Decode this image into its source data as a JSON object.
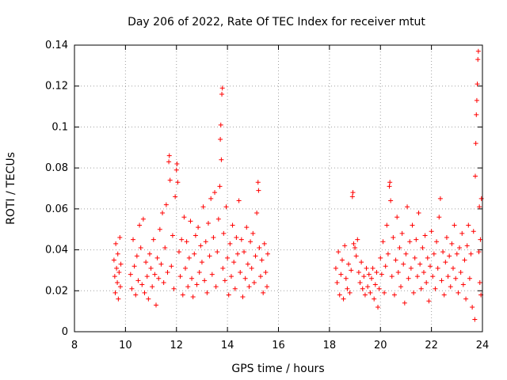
{
  "chart_data": {
    "type": "scatter",
    "title": "Day 206 of 2022, Rate Of TEC Index for receiver mtut",
    "xlabel": "GPS time / hours",
    "ylabel": "ROTI / TECUs",
    "xlim": [
      8,
      24
    ],
    "ylim": [
      0,
      0.14
    ],
    "x_ticks": [
      8,
      10,
      12,
      14,
      16,
      18,
      20,
      22,
      24
    ],
    "x_tick_labels": [
      "8",
      "10",
      "12",
      "14",
      "16",
      "18",
      "20",
      "22",
      "24"
    ],
    "y_ticks": [
      0,
      0.02,
      0.04,
      0.06,
      0.08,
      0.1,
      0.12,
      0.14
    ],
    "y_tick_labels": [
      "0",
      "0.02",
      "0.04",
      "0.06",
      "0.08",
      "0.1",
      "0.12",
      "0.14"
    ],
    "grid": true,
    "marker": "+",
    "color": "#ff0000",
    "series": [
      {
        "name": "ROTI",
        "points": [
          [
            9.55,
            0.035
          ],
          [
            9.58,
            0.027
          ],
          [
            9.6,
            0.019
          ],
          [
            9.62,
            0.043
          ],
          [
            9.65,
            0.031
          ],
          [
            9.68,
            0.024
          ],
          [
            9.7,
            0.038
          ],
          [
            9.72,
            0.016
          ],
          [
            9.75,
            0.029
          ],
          [
            9.78,
            0.046
          ],
          [
            9.8,
            0.022
          ],
          [
            9.82,
            0.033
          ],
          [
            10.2,
            0.028
          ],
          [
            10.25,
            0.021
          ],
          [
            10.3,
            0.045
          ],
          [
            10.35,
            0.032
          ],
          [
            10.4,
            0.018
          ],
          [
            10.45,
            0.037
          ],
          [
            10.5,
            0.025
          ],
          [
            10.55,
            0.052
          ],
          [
            10.6,
            0.041
          ],
          [
            10.65,
            0.023
          ],
          [
            10.7,
            0.055
          ],
          [
            10.75,
            0.019
          ],
          [
            10.8,
            0.034
          ],
          [
            10.85,
            0.027
          ],
          [
            10.9,
            0.016
          ],
          [
            10.95,
            0.038
          ],
          [
            11.0,
            0.031
          ],
          [
            11.05,
            0.022
          ],
          [
            11.1,
            0.045
          ],
          [
            11.15,
            0.028
          ],
          [
            11.2,
            0.013
          ],
          [
            11.25,
            0.036
          ],
          [
            11.3,
            0.026
          ],
          [
            11.35,
            0.05
          ],
          [
            11.4,
            0.033
          ],
          [
            11.45,
            0.058
          ],
          [
            11.5,
            0.024
          ],
          [
            11.55,
            0.041
          ],
          [
            11.6,
            0.062
          ],
          [
            11.65,
            0.029
          ],
          [
            11.7,
            0.083
          ],
          [
            11.72,
            0.086
          ],
          [
            11.75,
            0.074
          ],
          [
            11.8,
            0.032
          ],
          [
            11.85,
            0.047
          ],
          [
            11.9,
            0.021
          ],
          [
            11.95,
            0.066
          ],
          [
            12.0,
            0.079
          ],
          [
            12.02,
            0.082
          ],
          [
            12.05,
            0.073
          ],
          [
            12.1,
            0.039
          ],
          [
            12.15,
            0.027
          ],
          [
            12.2,
            0.045
          ],
          [
            12.25,
            0.018
          ],
          [
            12.3,
            0.056
          ],
          [
            12.35,
            0.031
          ],
          [
            12.4,
            0.044
          ],
          [
            12.45,
            0.022
          ],
          [
            12.5,
            0.036
          ],
          [
            12.55,
            0.054
          ],
          [
            12.6,
            0.026
          ],
          [
            12.65,
            0.017
          ],
          [
            12.7,
            0.038
          ],
          [
            12.75,
            0.047
          ],
          [
            12.8,
            0.023
          ],
          [
            12.85,
            0.051
          ],
          [
            12.9,
            0.029
          ],
          [
            12.95,
            0.042
          ],
          [
            13.0,
            0.034
          ],
          [
            13.05,
            0.061
          ],
          [
            13.1,
            0.025
          ],
          [
            13.15,
            0.044
          ],
          [
            13.2,
            0.019
          ],
          [
            13.25,
            0.053
          ],
          [
            13.3,
            0.037
          ],
          [
            13.35,
            0.065
          ],
          [
            13.4,
            0.028
          ],
          [
            13.45,
            0.046
          ],
          [
            13.5,
            0.068
          ],
          [
            13.55,
            0.022
          ],
          [
            13.6,
            0.039
          ],
          [
            13.65,
            0.055
          ],
          [
            13.7,
            0.071
          ],
          [
            13.72,
            0.094
          ],
          [
            13.74,
            0.101
          ],
          [
            13.76,
            0.084
          ],
          [
            13.78,
            0.116
          ],
          [
            13.8,
            0.119
          ],
          [
            13.82,
            0.031
          ],
          [
            13.85,
            0.048
          ],
          [
            13.9,
            0.025
          ],
          [
            13.95,
            0.061
          ],
          [
            14.0,
            0.036
          ],
          [
            14.05,
            0.018
          ],
          [
            14.1,
            0.043
          ],
          [
            14.15,
            0.027
          ],
          [
            14.2,
            0.052
          ],
          [
            14.25,
            0.034
          ],
          [
            14.3,
            0.021
          ],
          [
            14.35,
            0.046
          ],
          [
            14.4,
            0.038
          ],
          [
            14.45,
            0.064
          ],
          [
            14.5,
            0.029
          ],
          [
            14.55,
            0.045
          ],
          [
            14.6,
            0.017
          ],
          [
            14.65,
            0.039
          ],
          [
            14.7,
            0.026
          ],
          [
            14.75,
            0.051
          ],
          [
            14.8,
            0.033
          ],
          [
            14.85,
            0.022
          ],
          [
            14.9,
            0.044
          ],
          [
            14.95,
            0.031
          ],
          [
            15.0,
            0.048
          ],
          [
            15.05,
            0.024
          ],
          [
            15.1,
            0.037
          ],
          [
            15.15,
            0.058
          ],
          [
            15.2,
            0.073
          ],
          [
            15.22,
            0.069
          ],
          [
            15.25,
            0.041
          ],
          [
            15.3,
            0.027
          ],
          [
            15.35,
            0.035
          ],
          [
            15.4,
            0.019
          ],
          [
            15.45,
            0.043
          ],
          [
            15.5,
            0.029
          ],
          [
            15.55,
            0.022
          ],
          [
            15.58,
            0.038
          ],
          [
            18.25,
            0.031
          ],
          [
            18.3,
            0.024
          ],
          [
            18.35,
            0.039
          ],
          [
            18.4,
            0.018
          ],
          [
            18.45,
            0.028
          ],
          [
            18.5,
            0.035
          ],
          [
            18.55,
            0.016
          ],
          [
            18.6,
            0.042
          ],
          [
            18.65,
            0.026
          ],
          [
            18.7,
            0.021
          ],
          [
            18.75,
            0.033
          ],
          [
            18.8,
            0.019
          ],
          [
            18.85,
            0.03
          ],
          [
            18.9,
            0.066
          ],
          [
            18.92,
            0.068
          ],
          [
            18.95,
            0.043
          ],
          [
            19.0,
            0.041
          ],
          [
            19.05,
            0.037
          ],
          [
            19.1,
            0.045
          ],
          [
            19.15,
            0.029
          ],
          [
            19.2,
            0.024
          ],
          [
            19.25,
            0.034
          ],
          [
            19.3,
            0.021
          ],
          [
            19.35,
            0.027
          ],
          [
            19.4,
            0.018
          ],
          [
            19.45,
            0.031
          ],
          [
            19.5,
            0.022
          ],
          [
            19.55,
            0.028
          ],
          [
            19.6,
            0.019
          ],
          [
            19.65,
            0.026
          ],
          [
            19.7,
            0.031
          ],
          [
            19.75,
            0.016
          ],
          [
            19.8,
            0.023
          ],
          [
            19.85,
            0.029
          ],
          [
            19.9,
            0.012
          ],
          [
            19.95,
            0.021
          ],
          [
            20.0,
            0.036
          ],
          [
            20.05,
            0.028
          ],
          [
            20.1,
            0.044
          ],
          [
            20.15,
            0.019
          ],
          [
            20.2,
            0.032
          ],
          [
            20.25,
            0.052
          ],
          [
            20.3,
            0.038
          ],
          [
            20.35,
            0.071
          ],
          [
            20.37,
            0.073
          ],
          [
            20.4,
            0.064
          ],
          [
            20.45,
            0.027
          ],
          [
            20.5,
            0.046
          ],
          [
            20.55,
            0.018
          ],
          [
            20.6,
            0.035
          ],
          [
            20.65,
            0.056
          ],
          [
            20.7,
            0.029
          ],
          [
            20.75,
            0.041
          ],
          [
            20.8,
            0.022
          ],
          [
            20.85,
            0.048
          ],
          [
            20.9,
            0.033
          ],
          [
            20.95,
            0.014
          ],
          [
            21.0,
            0.038
          ],
          [
            21.05,
            0.061
          ],
          [
            21.1,
            0.026
          ],
          [
            21.15,
            0.044
          ],
          [
            21.2,
            0.031
          ],
          [
            21.25,
            0.052
          ],
          [
            21.3,
            0.019
          ],
          [
            21.35,
            0.036
          ],
          [
            21.4,
            0.045
          ],
          [
            21.45,
            0.027
          ],
          [
            21.5,
            0.058
          ],
          [
            21.55,
            0.033
          ],
          [
            21.6,
            0.021
          ],
          [
            21.65,
            0.041
          ],
          [
            21.7,
            0.029
          ],
          [
            21.75,
            0.047
          ],
          [
            21.8,
            0.024
          ],
          [
            21.85,
            0.036
          ],
          [
            21.9,
            0.015
          ],
          [
            21.95,
            0.032
          ],
          [
            22.0,
            0.049
          ],
          [
            22.05,
            0.027
          ],
          [
            22.1,
            0.038
          ],
          [
            22.15,
            0.021
          ],
          [
            22.2,
            0.044
          ],
          [
            22.25,
            0.031
          ],
          [
            22.3,
            0.056
          ],
          [
            22.35,
            0.065
          ],
          [
            22.4,
            0.025
          ],
          [
            22.45,
            0.039
          ],
          [
            22.5,
            0.018
          ],
          [
            22.55,
            0.034
          ],
          [
            22.6,
            0.046
          ],
          [
            22.65,
            0.027
          ],
          [
            22.7,
            0.037
          ],
          [
            22.75,
            0.022
          ],
          [
            22.8,
            0.043
          ],
          [
            22.85,
            0.031
          ],
          [
            22.9,
            0.052
          ],
          [
            22.95,
            0.026
          ],
          [
            23.0,
            0.038
          ],
          [
            23.05,
            0.019
          ],
          [
            23.1,
            0.041
          ],
          [
            23.15,
            0.029
          ],
          [
            23.2,
            0.048
          ],
          [
            23.25,
            0.023
          ],
          [
            23.3,
            0.035
          ],
          [
            23.35,
            0.016
          ],
          [
            23.4,
            0.042
          ],
          [
            23.45,
            0.052
          ],
          [
            23.5,
            0.026
          ],
          [
            23.55,
            0.038
          ],
          [
            23.6,
            0.012
          ],
          [
            23.65,
            0.049
          ],
          [
            23.7,
            0.006
          ],
          [
            23.72,
            0.076
          ],
          [
            23.74,
            0.092
          ],
          [
            23.76,
            0.106
          ],
          [
            23.78,
            0.113
          ],
          [
            23.8,
            0.121
          ],
          [
            23.82,
            0.133
          ],
          [
            23.84,
            0.137
          ],
          [
            23.86,
            0.039
          ],
          [
            23.88,
            0.061
          ],
          [
            23.9,
            0.024
          ],
          [
            23.92,
            0.045
          ],
          [
            23.94,
            0.018
          ],
          [
            23.96,
            0.065
          ]
        ]
      }
    ]
  }
}
